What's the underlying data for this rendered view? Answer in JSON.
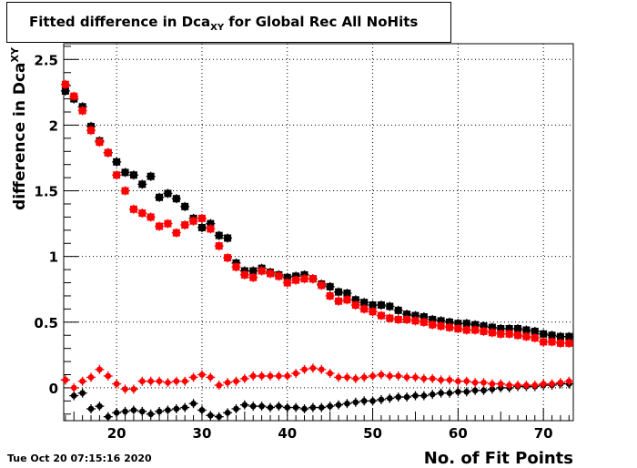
{
  "chart_data": {
    "type": "scatter",
    "title_main": "Fitted difference in Dca",
    "title_sub": "XY",
    "title_rest": " for Global Rec All NoHits",
    "xlabel": "No. of Fit Points",
    "ylabel_main": "difference in Dca",
    "ylabel_sub": "XY",
    "xlim": [
      13.8,
      73.5
    ],
    "ylim": [
      -0.25,
      2.62
    ],
    "x_ticks": [
      20,
      30,
      40,
      50,
      60,
      70
    ],
    "y_ticks": [
      0,
      0.5,
      1,
      1.5,
      2,
      2.5
    ],
    "y_tick_labels": [
      "0",
      "0.5",
      "1",
      "1.5",
      "2",
      "2.5"
    ],
    "grid": true,
    "series": [
      {
        "marker": "square",
        "color": "#000000",
        "x": [
          14,
          15,
          16,
          17,
          18,
          19,
          20,
          21,
          22,
          23,
          24,
          25,
          26,
          27,
          28,
          29,
          30,
          31,
          32,
          33,
          34,
          35,
          36,
          37,
          38,
          39,
          40,
          41,
          42,
          43,
          44,
          45,
          46,
          47,
          48,
          49,
          50,
          51,
          52,
          53,
          54,
          55,
          56,
          57,
          58,
          59,
          60,
          61,
          62,
          63,
          64,
          65,
          66,
          67,
          68,
          69,
          70,
          71,
          72,
          73
        ],
        "y": [
          2.26,
          2.2,
          2.14,
          1.99,
          1.88,
          1.79,
          1.72,
          1.64,
          1.62,
          1.55,
          1.61,
          1.45,
          1.48,
          1.44,
          1.38,
          1.29,
          1.22,
          1.25,
          1.16,
          1.14,
          0.95,
          0.89,
          0.89,
          0.91,
          0.88,
          0.86,
          0.84,
          0.85,
          0.86,
          0.83,
          0.79,
          0.77,
          0.73,
          0.72,
          0.67,
          0.65,
          0.63,
          0.63,
          0.62,
          0.59,
          0.56,
          0.55,
          0.54,
          0.52,
          0.51,
          0.5,
          0.49,
          0.49,
          0.48,
          0.47,
          0.46,
          0.45,
          0.45,
          0.45,
          0.44,
          0.43,
          0.41,
          0.4,
          0.39,
          0.39
        ]
      },
      {
        "marker": "square",
        "color": "#ff0000",
        "x": [
          14,
          15,
          16,
          17,
          18,
          19,
          20,
          21,
          22,
          23,
          24,
          25,
          26,
          27,
          28,
          29,
          30,
          31,
          32,
          33,
          34,
          35,
          36,
          37,
          38,
          39,
          40,
          41,
          42,
          43,
          44,
          45,
          46,
          47,
          48,
          49,
          50,
          51,
          52,
          53,
          54,
          55,
          56,
          57,
          58,
          59,
          60,
          61,
          62,
          63,
          64,
          65,
          66,
          67,
          68,
          69,
          70,
          71,
          72,
          73
        ],
        "y": [
          2.31,
          2.22,
          2.11,
          1.96,
          1.87,
          1.79,
          1.62,
          1.5,
          1.36,
          1.33,
          1.3,
          1.23,
          1.25,
          1.18,
          1.24,
          1.27,
          1.29,
          1.21,
          1.08,
          0.99,
          0.92,
          0.86,
          0.84,
          0.89,
          0.87,
          0.85,
          0.8,
          0.82,
          0.83,
          0.83,
          0.78,
          0.7,
          0.66,
          0.67,
          0.63,
          0.6,
          0.58,
          0.55,
          0.53,
          0.52,
          0.52,
          0.51,
          0.5,
          0.48,
          0.47,
          0.46,
          0.45,
          0.44,
          0.44,
          0.43,
          0.42,
          0.41,
          0.41,
          0.4,
          0.39,
          0.38,
          0.35,
          0.35,
          0.34,
          0.34
        ]
      },
      {
        "marker": "circle",
        "color": "#000000",
        "x": [
          14,
          15,
          16,
          17,
          18,
          19,
          20,
          21,
          22,
          23,
          24,
          25,
          26,
          27,
          28,
          29,
          30,
          31,
          32,
          33,
          34,
          35,
          36,
          37,
          38,
          39,
          40,
          41,
          42,
          43,
          44,
          45,
          46,
          47,
          48,
          49,
          50,
          51,
          52,
          53,
          54,
          55,
          56,
          57,
          58,
          59,
          60,
          61,
          62,
          63,
          64,
          65,
          66,
          67,
          68,
          69,
          70,
          71,
          72,
          73
        ],
        "y": [
          0.06,
          -0.06,
          -0.04,
          -0.16,
          -0.14,
          -0.22,
          -0.19,
          -0.18,
          -0.17,
          -0.18,
          -0.2,
          -0.18,
          -0.17,
          -0.16,
          -0.15,
          -0.12,
          -0.17,
          -0.21,
          -0.22,
          -0.19,
          -0.16,
          -0.13,
          -0.14,
          -0.14,
          -0.15,
          -0.14,
          -0.15,
          -0.15,
          -0.16,
          -0.15,
          -0.15,
          -0.14,
          -0.13,
          -0.12,
          -0.11,
          -0.1,
          -0.1,
          -0.09,
          -0.08,
          -0.07,
          -0.07,
          -0.06,
          -0.06,
          -0.05,
          -0.04,
          -0.04,
          -0.03,
          -0.03,
          -0.02,
          -0.02,
          -0.01,
          0.0,
          0.0,
          0.01,
          0.01,
          0.01,
          0.02,
          0.02,
          0.03,
          0.03
        ]
      },
      {
        "marker": "circle",
        "color": "#ff0000",
        "x": [
          14,
          15,
          16,
          17,
          18,
          19,
          20,
          21,
          22,
          23,
          24,
          25,
          26,
          27,
          28,
          29,
          30,
          31,
          32,
          33,
          34,
          35,
          36,
          37,
          38,
          39,
          40,
          41,
          42,
          43,
          44,
          45,
          46,
          47,
          48,
          49,
          50,
          51,
          52,
          53,
          54,
          55,
          56,
          57,
          58,
          59,
          60,
          61,
          62,
          63,
          64,
          65,
          66,
          67,
          68,
          69,
          70,
          71,
          72,
          73
        ],
        "y": [
          0.06,
          0.0,
          0.05,
          0.08,
          0.14,
          0.09,
          0.03,
          -0.01,
          -0.01,
          0.05,
          0.05,
          0.05,
          0.04,
          0.05,
          0.05,
          0.08,
          0.1,
          0.08,
          0.02,
          0.04,
          0.05,
          0.07,
          0.09,
          0.09,
          0.09,
          0.09,
          0.09,
          0.11,
          0.14,
          0.15,
          0.14,
          0.11,
          0.08,
          0.08,
          0.07,
          0.08,
          0.09,
          0.1,
          0.09,
          0.09,
          0.08,
          0.08,
          0.07,
          0.07,
          0.06,
          0.06,
          0.05,
          0.05,
          0.04,
          0.04,
          0.03,
          0.03,
          0.02,
          0.02,
          0.02,
          0.02,
          0.03,
          0.03,
          0.04,
          0.05
        ]
      }
    ]
  },
  "timestamp": "Tue Oct 20 07:15:16 2020"
}
